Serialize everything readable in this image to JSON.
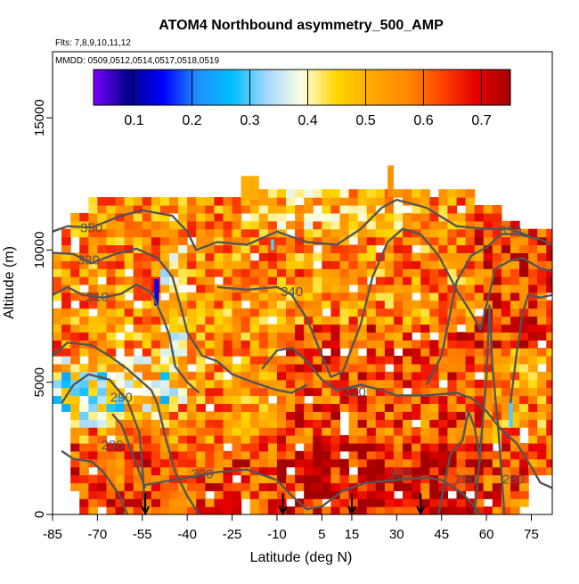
{
  "chart_data": {
    "type": "heatmap",
    "title": "ATOM4 Northbound asymmetry_500_AMP",
    "subtitle_flights": "Flts: 7,8,9,10,11,12",
    "subtitle_dates": "MMDD: 0509,0512,0514,0517,0518,0519",
    "xlabel": "Latitude (deg N)",
    "ylabel": "Altitude (m)",
    "xlim": [
      -85,
      82
    ],
    "ylim": [
      0,
      17500
    ],
    "x_ticks": [
      -85,
      -70,
      -55,
      -40,
      -25,
      -10,
      5,
      15,
      30,
      45,
      60,
      75
    ],
    "y_ticks": [
      0,
      5000,
      10000,
      15000
    ],
    "colorbar": {
      "range": [
        0.03,
        0.75
      ],
      "ticks": [
        0.1,
        0.2,
        0.3,
        0.4,
        0.5,
        0.6,
        0.7
      ],
      "colors": [
        "#7a00ff",
        "#00008b",
        "#0000ff",
        "#1e90ff",
        "#00bfff",
        "#a5d8ff",
        "#ffffe0",
        "#ffd700",
        "#ffa500",
        "#ff8c00",
        "#ff4500",
        "#e60000",
        "#a50000"
      ]
    },
    "theta_contour_labels": [
      {
        "label": "350",
        "lat": -72,
        "alt": 10800
      },
      {
        "label": "330",
        "lat": -73,
        "alt": 9600
      },
      {
        "label": "310",
        "lat": -70,
        "alt": 8200
      },
      {
        "label": "340",
        "lat": -5,
        "alt": 8400
      },
      {
        "label": "320",
        "lat": 16,
        "alt": 4600
      },
      {
        "label": "290",
        "lat": -62,
        "alt": 4400
      },
      {
        "label": "280",
        "lat": -65,
        "alt": 2600
      },
      {
        "label": "300",
        "lat": -35,
        "alt": 1500
      },
      {
        "label": "300",
        "lat": 31,
        "alt": 1500
      },
      {
        "label": "290",
        "lat": 53,
        "alt": 1300
      },
      {
        "label": "350",
        "lat": 68,
        "alt": 10700
      },
      {
        "label": "280",
        "lat": 69,
        "alt": 1300
      }
    ],
    "profile_markers_lat": [
      -54,
      -8,
      15,
      38
    ]
  }
}
